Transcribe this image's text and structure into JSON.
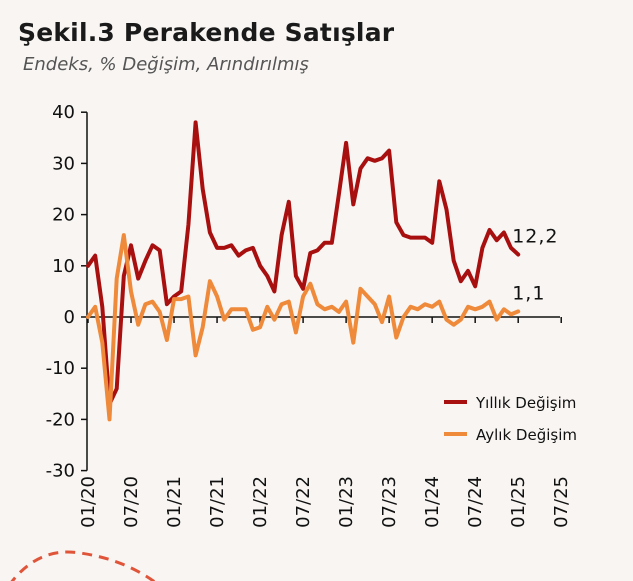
{
  "header": {
    "title": "Şekil.3 Perakende Satışlar",
    "subtitle": "Endeks, % Değişim, Arındırılmış"
  },
  "chart_data": {
    "type": "line",
    "ylim": [
      -30,
      40
    ],
    "yticks": [
      40,
      30,
      20,
      10,
      0,
      -10,
      -20,
      -30
    ],
    "xticks": [
      "01/20",
      "07/20",
      "01/21",
      "07/21",
      "01/22",
      "07/22",
      "01/23",
      "07/23",
      "01/24",
      "07/24",
      "01/25",
      "07/25"
    ],
    "legend_position": "bottom-right",
    "grid": false,
    "series": [
      {
        "name": "Yıllık Değişim",
        "color": "#a81010",
        "end_label": "12,2",
        "values": [
          10,
          12,
          2,
          -17,
          -14,
          8,
          14,
          7.5,
          11,
          14,
          13,
          2.5,
          4,
          5,
          18,
          38,
          25,
          16.5,
          13.5,
          13.5,
          14,
          12,
          13,
          13.5,
          10,
          8,
          5,
          16,
          22.5,
          8,
          5.5,
          12.5,
          13,
          14.5,
          14.5,
          24,
          34,
          22,
          29,
          31,
          30.5,
          31,
          32.5,
          18.5,
          16,
          15.5,
          15.5,
          15.5,
          14.5,
          26.5,
          21,
          11,
          7,
          9,
          6,
          13.5,
          17,
          15,
          16.5,
          13.5,
          12.2
        ]
      },
      {
        "name": "Aylık Değişim",
        "color": "#ee8a3a",
        "end_label": "1,1",
        "values": [
          0,
          2,
          -5,
          -20,
          7.5,
          16,
          5,
          -1.5,
          2.5,
          3,
          1,
          -4.5,
          3.5,
          3.5,
          4,
          -7.5,
          -2,
          7,
          4,
          -0.5,
          1.5,
          1.5,
          1.5,
          -2.5,
          -2,
          2,
          -0.5,
          2.5,
          3,
          -3,
          4,
          6.5,
          2.5,
          1.5,
          2,
          1,
          3,
          -5,
          5.5,
          4,
          2.5,
          -1,
          4,
          -4,
          0,
          2,
          1.5,
          2.5,
          2,
          3,
          -0.5,
          -1.5,
          -0.5,
          2,
          1.5,
          2,
          3,
          -0.5,
          1.5,
          0.5,
          1.1
        ]
      }
    ]
  }
}
